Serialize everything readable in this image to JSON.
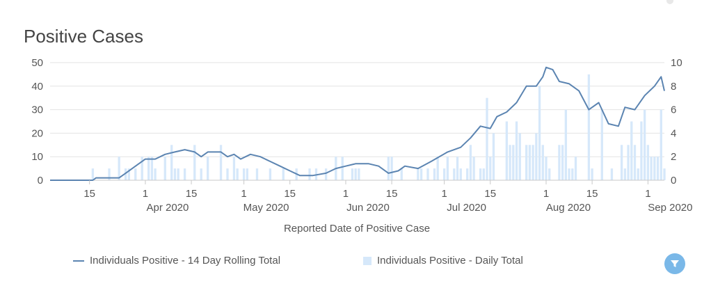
{
  "page": {
    "title": "Positive Cases"
  },
  "legend": {
    "line_label": "Individuals Positive - 14 Day Rolling Total",
    "bar_label": "Individuals Positive - Daily Total"
  },
  "colors": {
    "line": "#5b84b1",
    "bars": "#d6e8fa",
    "grid": "#e3e3e3",
    "filter_button": "#7ab8e8"
  },
  "filter": {
    "icon": "filter-icon"
  },
  "chart_data": {
    "type": "bar+line",
    "title": "Positive Cases",
    "xlabel": "Reported Date of Positive Case",
    "ylabel_left": "",
    "ylabel_right": "",
    "ylim_left": [
      0,
      50
    ],
    "ylim_right": [
      0,
      10
    ],
    "yticks_left": [
      "0",
      "10",
      "20",
      "30",
      "40",
      "50"
    ],
    "yticks_right": [
      "0",
      "2",
      "4",
      "6",
      "8",
      "10"
    ],
    "x_start": "2020-03-03",
    "x_end": "2020-09-06",
    "x_ticks": [
      {
        "date": "2020-03-15",
        "label": "15",
        "sub": ""
      },
      {
        "date": "2020-04-01",
        "label": "1",
        "sub": "Apr 2020"
      },
      {
        "date": "2020-04-15",
        "label": "15",
        "sub": ""
      },
      {
        "date": "2020-05-01",
        "label": "1",
        "sub": "May 2020"
      },
      {
        "date": "2020-05-15",
        "label": "15",
        "sub": ""
      },
      {
        "date": "2020-06-01",
        "label": "1",
        "sub": "Jun 2020"
      },
      {
        "date": "2020-06-15",
        "label": "15",
        "sub": ""
      },
      {
        "date": "2020-07-01",
        "label": "1",
        "sub": "Jul 2020"
      },
      {
        "date": "2020-07-15",
        "label": "15",
        "sub": ""
      },
      {
        "date": "2020-08-01",
        "label": "1",
        "sub": "Aug 2020"
      },
      {
        "date": "2020-08-15",
        "label": "15",
        "sub": ""
      },
      {
        "date": "2020-09-01",
        "label": "1",
        "sub": "Sep 2020"
      }
    ],
    "series": [
      {
        "name": "Individuals Positive - 14 Day Rolling Total",
        "axis": "left",
        "kind": "line",
        "points": [
          [
            "2020-03-03",
            0
          ],
          [
            "2020-03-16",
            0
          ],
          [
            "2020-03-17",
            1
          ],
          [
            "2020-03-24",
            1
          ],
          [
            "2020-03-26",
            3
          ],
          [
            "2020-03-29",
            6
          ],
          [
            "2020-04-01",
            9
          ],
          [
            "2020-04-04",
            9
          ],
          [
            "2020-04-07",
            11
          ],
          [
            "2020-04-10",
            12
          ],
          [
            "2020-04-13",
            13
          ],
          [
            "2020-04-16",
            12
          ],
          [
            "2020-04-18",
            10
          ],
          [
            "2020-04-20",
            12
          ],
          [
            "2020-04-24",
            12
          ],
          [
            "2020-04-26",
            10
          ],
          [
            "2020-04-28",
            11
          ],
          [
            "2020-04-30",
            9
          ],
          [
            "2020-05-03",
            11
          ],
          [
            "2020-05-06",
            10
          ],
          [
            "2020-05-09",
            8
          ],
          [
            "2020-05-12",
            6
          ],
          [
            "2020-05-15",
            4
          ],
          [
            "2020-05-18",
            2
          ],
          [
            "2020-05-22",
            2
          ],
          [
            "2020-05-26",
            3
          ],
          [
            "2020-05-29",
            5
          ],
          [
            "2020-06-01",
            6
          ],
          [
            "2020-06-04",
            7
          ],
          [
            "2020-06-08",
            7
          ],
          [
            "2020-06-11",
            6
          ],
          [
            "2020-06-14",
            3
          ],
          [
            "2020-06-17",
            4
          ],
          [
            "2020-06-19",
            6
          ],
          [
            "2020-06-23",
            5
          ],
          [
            "2020-06-27",
            8
          ],
          [
            "2020-07-02",
            12
          ],
          [
            "2020-07-06",
            14
          ],
          [
            "2020-07-09",
            18
          ],
          [
            "2020-07-12",
            23
          ],
          [
            "2020-07-15",
            22
          ],
          [
            "2020-07-17",
            27
          ],
          [
            "2020-07-20",
            29
          ],
          [
            "2020-07-23",
            33
          ],
          [
            "2020-07-26",
            40
          ],
          [
            "2020-07-29",
            40
          ],
          [
            "2020-07-31",
            44
          ],
          [
            "2020-08-01",
            48
          ],
          [
            "2020-08-03",
            47
          ],
          [
            "2020-08-05",
            42
          ],
          [
            "2020-08-08",
            41
          ],
          [
            "2020-08-11",
            38
          ],
          [
            "2020-08-14",
            30
          ],
          [
            "2020-08-17",
            33
          ],
          [
            "2020-08-20",
            24
          ],
          [
            "2020-08-23",
            23
          ],
          [
            "2020-08-25",
            31
          ],
          [
            "2020-08-28",
            30
          ],
          [
            "2020-08-31",
            36
          ],
          [
            "2020-09-03",
            40
          ],
          [
            "2020-09-05",
            44
          ],
          [
            "2020-09-06",
            38
          ]
        ]
      },
      {
        "name": "Individuals Positive - Daily Total",
        "axis": "right",
        "kind": "bar",
        "points": [
          [
            "2020-03-16",
            1
          ],
          [
            "2020-03-21",
            1
          ],
          [
            "2020-03-24",
            2
          ],
          [
            "2020-03-26",
            1
          ],
          [
            "2020-03-27",
            1
          ],
          [
            "2020-03-29",
            1
          ],
          [
            "2020-03-31",
            2
          ],
          [
            "2020-04-02",
            2
          ],
          [
            "2020-04-03",
            2
          ],
          [
            "2020-04-04",
            1
          ],
          [
            "2020-04-07",
            2
          ],
          [
            "2020-04-09",
            3
          ],
          [
            "2020-04-10",
            1
          ],
          [
            "2020-04-11",
            1
          ],
          [
            "2020-04-13",
            1
          ],
          [
            "2020-04-16",
            3
          ],
          [
            "2020-04-18",
            1
          ],
          [
            "2020-04-20",
            2
          ],
          [
            "2020-04-24",
            3
          ],
          [
            "2020-04-26",
            1
          ],
          [
            "2020-04-28",
            2
          ],
          [
            "2020-04-29",
            1
          ],
          [
            "2020-05-01",
            1
          ],
          [
            "2020-05-02",
            1
          ],
          [
            "2020-05-05",
            1
          ],
          [
            "2020-05-09",
            1
          ],
          [
            "2020-05-13",
            1
          ],
          [
            "2020-05-17",
            1
          ],
          [
            "2020-05-21",
            1
          ],
          [
            "2020-05-23",
            1
          ],
          [
            "2020-05-26",
            1
          ],
          [
            "2020-05-29",
            2
          ],
          [
            "2020-05-31",
            2
          ],
          [
            "2020-06-03",
            1
          ],
          [
            "2020-06-04",
            1
          ],
          [
            "2020-06-05",
            1
          ],
          [
            "2020-06-14",
            2
          ],
          [
            "2020-06-15",
            2
          ],
          [
            "2020-06-18",
            1
          ],
          [
            "2020-06-23",
            1
          ],
          [
            "2020-06-24",
            1
          ],
          [
            "2020-06-26",
            1
          ],
          [
            "2020-06-28",
            1
          ],
          [
            "2020-06-29",
            2
          ],
          [
            "2020-07-01",
            1
          ],
          [
            "2020-07-02",
            2
          ],
          [
            "2020-07-04",
            1
          ],
          [
            "2020-07-05",
            2
          ],
          [
            "2020-07-06",
            1
          ],
          [
            "2020-07-08",
            1
          ],
          [
            "2020-07-09",
            3
          ],
          [
            "2020-07-10",
            2
          ],
          [
            "2020-07-12",
            1
          ],
          [
            "2020-07-13",
            1
          ],
          [
            "2020-07-14",
            7
          ],
          [
            "2020-07-15",
            2
          ],
          [
            "2020-07-16",
            4
          ],
          [
            "2020-07-20",
            5
          ],
          [
            "2020-07-21",
            3
          ],
          [
            "2020-07-22",
            3
          ],
          [
            "2020-07-23",
            5
          ],
          [
            "2020-07-24",
            4
          ],
          [
            "2020-07-26",
            3
          ],
          [
            "2020-07-27",
            3
          ],
          [
            "2020-07-28",
            3
          ],
          [
            "2020-07-29",
            4
          ],
          [
            "2020-07-30",
            8
          ],
          [
            "2020-07-31",
            3
          ],
          [
            "2020-08-01",
            2
          ],
          [
            "2020-08-02",
            1
          ],
          [
            "2020-08-05",
            3
          ],
          [
            "2020-08-06",
            3
          ],
          [
            "2020-08-07",
            6
          ],
          [
            "2020-08-08",
            1
          ],
          [
            "2020-08-09",
            1
          ],
          [
            "2020-08-10",
            2
          ],
          [
            "2020-08-14",
            9
          ],
          [
            "2020-08-15",
            1
          ],
          [
            "2020-08-18",
            6
          ],
          [
            "2020-08-21",
            1
          ],
          [
            "2020-08-24",
            3
          ],
          [
            "2020-08-25",
            1
          ],
          [
            "2020-08-26",
            3
          ],
          [
            "2020-08-27",
            5
          ],
          [
            "2020-08-28",
            3
          ],
          [
            "2020-08-29",
            1
          ],
          [
            "2020-08-30",
            5
          ],
          [
            "2020-08-31",
            6
          ],
          [
            "2020-09-01",
            3
          ],
          [
            "2020-09-02",
            2
          ],
          [
            "2020-09-03",
            2
          ],
          [
            "2020-09-04",
            2
          ],
          [
            "2020-09-05",
            6
          ],
          [
            "2020-09-06",
            1
          ]
        ]
      }
    ]
  }
}
